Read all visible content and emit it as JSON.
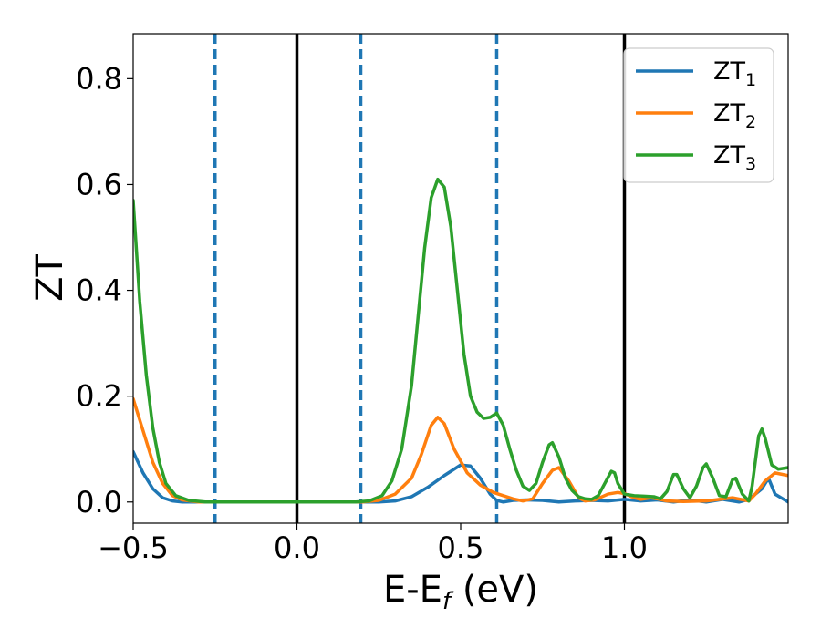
{
  "chart_data": {
    "type": "line",
    "xlabel": "E-E",
    "xlabel_sub": "f",
    "xlabel_unit": " (eV)",
    "ylabel": "ZT",
    "xlim": [
      -0.5,
      1.5
    ],
    "ylim": [
      -0.04,
      0.885
    ],
    "xticks": [
      -0.5,
      0.0,
      0.5,
      1.0
    ],
    "xtick_labels": [
      "−0.5",
      "0.0",
      "0.5",
      "1.0"
    ],
    "yticks": [
      0.0,
      0.2,
      0.4,
      0.6,
      0.8
    ],
    "ytick_labels": [
      "0.0",
      "0.2",
      "0.4",
      "0.6",
      "0.8"
    ],
    "grid": false,
    "legend_position": "top-right",
    "vlines_solid": [
      0.0,
      1.0
    ],
    "vlines_dashed": [
      -0.25,
      0.195,
      0.61
    ],
    "colors": {
      "solid_vline": "#000000",
      "dashed_vline": "#1f77b4"
    },
    "series": [
      {
        "name": "ZT",
        "sub": "1",
        "color": "#1f77b4",
        "points": [
          [
            -0.5,
            0.095
          ],
          [
            -0.47,
            0.055
          ],
          [
            -0.44,
            0.025
          ],
          [
            -0.41,
            0.008
          ],
          [
            -0.38,
            0.002
          ],
          [
            -0.35,
            0.0
          ],
          [
            0.0,
            0.0
          ],
          [
            0.25,
            0.0
          ],
          [
            0.3,
            0.002
          ],
          [
            0.35,
            0.01
          ],
          [
            0.4,
            0.028
          ],
          [
            0.45,
            0.05
          ],
          [
            0.5,
            0.07
          ],
          [
            0.53,
            0.068
          ],
          [
            0.56,
            0.045
          ],
          [
            0.59,
            0.015
          ],
          [
            0.61,
            0.003
          ],
          [
            0.63,
            0.0
          ],
          [
            0.66,
            0.003
          ],
          [
            0.7,
            0.004
          ],
          [
            0.75,
            0.003
          ],
          [
            0.8,
            0.0
          ],
          [
            0.85,
            0.002
          ],
          [
            0.9,
            0.003
          ],
          [
            0.95,
            0.002
          ],
          [
            1.0,
            0.005
          ],
          [
            1.05,
            0.002
          ],
          [
            1.1,
            0.004
          ],
          [
            1.15,
            0.0
          ],
          [
            1.2,
            0.004
          ],
          [
            1.25,
            0.0
          ],
          [
            1.3,
            0.005
          ],
          [
            1.35,
            0.0
          ],
          [
            1.38,
            0.005
          ],
          [
            1.42,
            0.025
          ],
          [
            1.44,
            0.045
          ],
          [
            1.46,
            0.015
          ],
          [
            1.5,
            0.0
          ]
        ]
      },
      {
        "name": "ZT",
        "sub": "2",
        "color": "#ff7f0e",
        "points": [
          [
            -0.5,
            0.195
          ],
          [
            -0.47,
            0.135
          ],
          [
            -0.44,
            0.075
          ],
          [
            -0.41,
            0.035
          ],
          [
            -0.38,
            0.012
          ],
          [
            -0.35,
            0.004
          ],
          [
            -0.3,
            0.0
          ],
          [
            0.2,
            0.0
          ],
          [
            0.25,
            0.003
          ],
          [
            0.3,
            0.015
          ],
          [
            0.35,
            0.045
          ],
          [
            0.38,
            0.09
          ],
          [
            0.41,
            0.145
          ],
          [
            0.43,
            0.16
          ],
          [
            0.45,
            0.148
          ],
          [
            0.48,
            0.1
          ],
          [
            0.52,
            0.055
          ],
          [
            0.56,
            0.032
          ],
          [
            0.6,
            0.018
          ],
          [
            0.63,
            0.012
          ],
          [
            0.66,
            0.006
          ],
          [
            0.69,
            0.002
          ],
          [
            0.72,
            0.006
          ],
          [
            0.75,
            0.035
          ],
          [
            0.78,
            0.06
          ],
          [
            0.8,
            0.065
          ],
          [
            0.83,
            0.04
          ],
          [
            0.86,
            0.008
          ],
          [
            0.88,
            0.002
          ],
          [
            0.91,
            0.004
          ],
          [
            0.95,
            0.015
          ],
          [
            0.98,
            0.018
          ],
          [
            1.0,
            0.016
          ],
          [
            1.03,
            0.008
          ],
          [
            1.05,
            0.005
          ],
          [
            1.08,
            0.008
          ],
          [
            1.1,
            0.006
          ],
          [
            1.13,
            0.002
          ],
          [
            1.18,
            0.001
          ],
          [
            1.25,
            0.002
          ],
          [
            1.33,
            0.008
          ],
          [
            1.38,
            0.002
          ],
          [
            1.4,
            0.015
          ],
          [
            1.43,
            0.04
          ],
          [
            1.46,
            0.055
          ],
          [
            1.5,
            0.05
          ]
        ]
      },
      {
        "name": "ZT",
        "sub": "3",
        "color": "#2ca02c",
        "points": [
          [
            -0.5,
            0.57
          ],
          [
            -0.48,
            0.38
          ],
          [
            -0.46,
            0.24
          ],
          [
            -0.44,
            0.14
          ],
          [
            -0.42,
            0.075
          ],
          [
            -0.4,
            0.035
          ],
          [
            -0.37,
            0.012
          ],
          [
            -0.33,
            0.003
          ],
          [
            -0.28,
            0.0
          ],
          [
            0.18,
            0.0
          ],
          [
            0.22,
            0.002
          ],
          [
            0.26,
            0.012
          ],
          [
            0.29,
            0.04
          ],
          [
            0.32,
            0.1
          ],
          [
            0.35,
            0.22
          ],
          [
            0.37,
            0.35
          ],
          [
            0.39,
            0.48
          ],
          [
            0.41,
            0.575
          ],
          [
            0.43,
            0.61
          ],
          [
            0.45,
            0.595
          ],
          [
            0.47,
            0.52
          ],
          [
            0.49,
            0.4
          ],
          [
            0.51,
            0.28
          ],
          [
            0.53,
            0.2
          ],
          [
            0.55,
            0.17
          ],
          [
            0.57,
            0.158
          ],
          [
            0.59,
            0.16
          ],
          [
            0.61,
            0.168
          ],
          [
            0.63,
            0.145
          ],
          [
            0.65,
            0.1
          ],
          [
            0.67,
            0.06
          ],
          [
            0.69,
            0.03
          ],
          [
            0.71,
            0.022
          ],
          [
            0.73,
            0.035
          ],
          [
            0.75,
            0.075
          ],
          [
            0.77,
            0.108
          ],
          [
            0.78,
            0.112
          ],
          [
            0.8,
            0.085
          ],
          [
            0.82,
            0.045
          ],
          [
            0.84,
            0.022
          ],
          [
            0.86,
            0.01
          ],
          [
            0.88,
            0.006
          ],
          [
            0.9,
            0.005
          ],
          [
            0.92,
            0.012
          ],
          [
            0.94,
            0.035
          ],
          [
            0.96,
            0.058
          ],
          [
            0.97,
            0.055
          ],
          [
            0.98,
            0.035
          ],
          [
            1.0,
            0.015
          ],
          [
            1.03,
            0.012
          ],
          [
            1.06,
            0.011
          ],
          [
            1.09,
            0.01
          ],
          [
            1.11,
            0.006
          ],
          [
            1.13,
            0.02
          ],
          [
            1.15,
            0.052
          ],
          [
            1.16,
            0.052
          ],
          [
            1.18,
            0.025
          ],
          [
            1.2,
            0.008
          ],
          [
            1.22,
            0.03
          ],
          [
            1.24,
            0.065
          ],
          [
            1.25,
            0.072
          ],
          [
            1.27,
            0.045
          ],
          [
            1.29,
            0.012
          ],
          [
            1.31,
            0.01
          ],
          [
            1.33,
            0.042
          ],
          [
            1.34,
            0.045
          ],
          [
            1.36,
            0.015
          ],
          [
            1.38,
            0.002
          ],
          [
            1.39,
            0.03
          ],
          [
            1.41,
            0.125
          ],
          [
            1.42,
            0.138
          ],
          [
            1.43,
            0.12
          ],
          [
            1.45,
            0.07
          ],
          [
            1.47,
            0.062
          ],
          [
            1.5,
            0.065
          ]
        ]
      }
    ]
  }
}
